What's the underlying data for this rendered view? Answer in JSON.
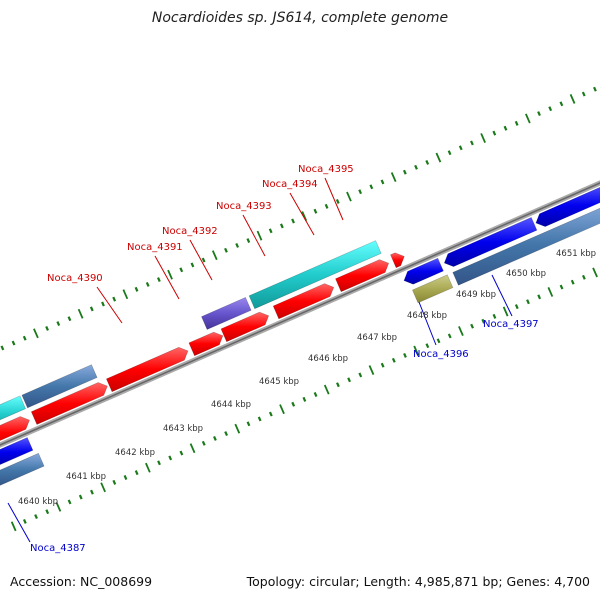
{
  "title": "Nocardioides sp. JS614, complete genome",
  "footer": {
    "accession": "Accession: NC_008699",
    "summary": "Topology: circular; Length: 4,985,871 bp; Genes: 4,700"
  },
  "colors": {
    "forward_label": "#cc0000",
    "reverse_label": "#0000cc",
    "tick": "#1a7a1a",
    "backbone": "#888888"
  },
  "scale_labels": [
    "4640 kbp",
    "4641 kbp",
    "4642 kbp",
    "4643 kbp",
    "4644 kbp",
    "4645 kbp",
    "4646 kbp",
    "4647 kbp",
    "4648 kbp",
    "4649 kbp",
    "4650 kbp",
    "4651 kbp"
  ],
  "forward_genes": [
    "Noca_4390",
    "Noca_4391",
    "Noca_4392",
    "Noca_4393",
    "Noca_4394",
    "Noca_4395"
  ],
  "reverse_genes": [
    "Noca_4387",
    "Noca_4396",
    "Noca_4397"
  ]
}
